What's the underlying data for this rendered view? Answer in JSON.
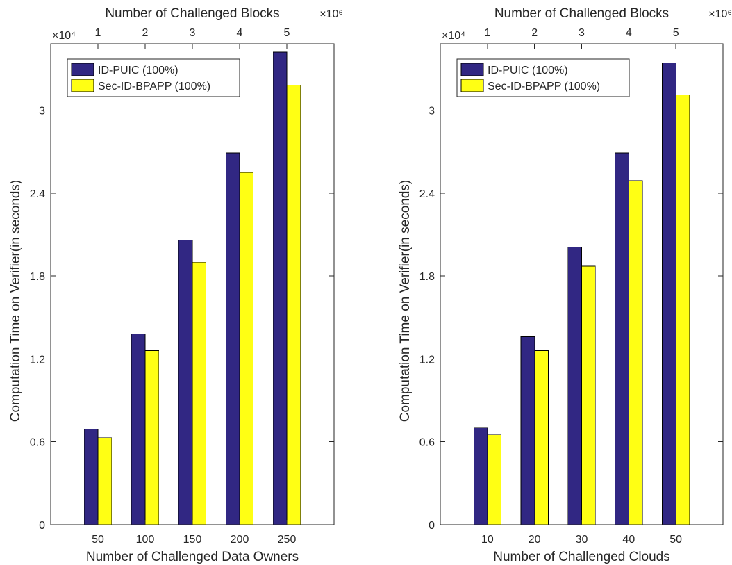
{
  "chart_data": [
    {
      "type": "bar",
      "categories": [
        "50",
        "100",
        "150",
        "200",
        "250"
      ],
      "series": [
        {
          "name": "ID-PUIC (100%)",
          "values": [
            6900,
            13800,
            20600,
            26900,
            34200
          ]
        },
        {
          "name": "Sec-ID-BPAPP (100%)",
          "values": [
            6300,
            12600,
            19000,
            25500,
            31800
          ]
        }
      ],
      "xlabel": "Number of Challenged Data Owners",
      "ylabel": "Computation Time on Verifier(in seconds)",
      "ylim": [
        0,
        34800
      ],
      "yticks": [
        0,
        6000,
        12000,
        18000,
        24000,
        30000
      ],
      "ytick_labels": [
        "0",
        "0.6",
        "1.2",
        "1.8",
        "2.4",
        "3"
      ],
      "y_exponent": "×10⁴",
      "top_xlabel": "Number of Challenged Blocks",
      "top_xticks": [
        "1",
        "2",
        "3",
        "4",
        "5"
      ],
      "top_x_exponent": "×10⁶",
      "legend_position": "top-left",
      "grid": false,
      "colors": [
        "#312783",
        "#ffff14"
      ]
    },
    {
      "type": "bar",
      "categories": [
        "10",
        "20",
        "30",
        "40",
        "50"
      ],
      "series": [
        {
          "name": "ID-PUIC (100%)",
          "values": [
            7000,
            13600,
            20100,
            26900,
            33400
          ]
        },
        {
          "name": "Sec-ID-BPAPP (100%)",
          "values": [
            6500,
            12600,
            18700,
            24900,
            31100
          ]
        }
      ],
      "xlabel": "Number of Challenged Clouds",
      "ylabel": "Computation Time on Verifier(in seconds)",
      "ylim": [
        0,
        34800
      ],
      "yticks": [
        0,
        6000,
        12000,
        18000,
        24000,
        30000
      ],
      "ytick_labels": [
        "0",
        "0.6",
        "1.2",
        "1.8",
        "2.4",
        "3"
      ],
      "y_exponent": "×10⁴",
      "top_xlabel": "Number of Challenged Blocks",
      "top_xticks": [
        "1",
        "2",
        "3",
        "4",
        "5"
      ],
      "top_x_exponent": "×10⁶",
      "legend_position": "top-left",
      "grid": false,
      "colors": [
        "#312783",
        "#ffff14"
      ]
    }
  ]
}
